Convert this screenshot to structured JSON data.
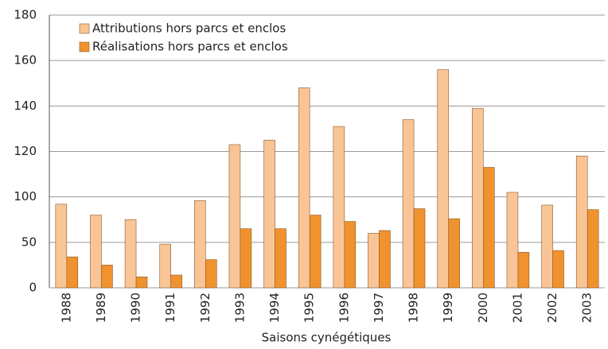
{
  "chart_data": {
    "type": "bar",
    "x_label": "Saisons cynégétiques",
    "categories": [
      "1988",
      "1989",
      "1990",
      "1991",
      "1992",
      "1993",
      "1994",
      "1995",
      "1996",
      "1997",
      "1998",
      "1999",
      "2000",
      "2001",
      "2002",
      "2003"
    ],
    "series": [
      {
        "name": "Attributions hors parcs et enclos",
        "color": "#f9c596",
        "values": [
          92,
          80,
          75,
          48,
          96,
          123,
          125,
          148,
          131,
          60,
          134,
          156,
          139,
          102,
          91,
          118
        ]
      },
      {
        "name": "Réalisations hors parcs et enclos",
        "color": "#f0922e",
        "values": [
          34,
          25,
          12,
          14,
          31,
          65,
          65,
          80,
          73,
          63,
          87,
          76,
          113,
          39,
          41,
          86
        ]
      }
    ],
    "ylim": [
      0,
      180
    ],
    "yticks": [
      0,
      50,
      100,
      120,
      140,
      160,
      180
    ],
    "grid": true,
    "legend": "top-left"
  }
}
